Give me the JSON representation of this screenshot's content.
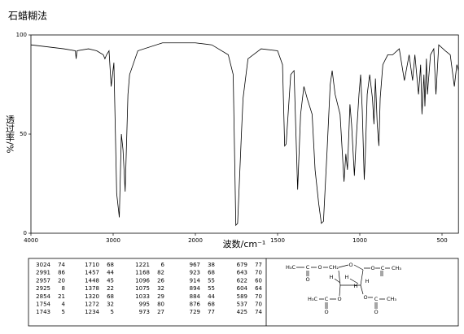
{
  "chart_data": {
    "type": "line",
    "title": "石蜡糊法",
    "xlabel": "波数/cm⁻¹",
    "ylabel": "透过率/%",
    "x": [
      4000,
      3600,
      3460,
      3450,
      3440,
      3300,
      3200,
      3120,
      3100,
      3080,
      3050,
      3024,
      2991,
      2957,
      2925,
      2900,
      2880,
      2854,
      2820,
      2800,
      2700,
      2400,
      2000,
      1900,
      1800,
      1770,
      1754,
      1743,
      1720,
      1710,
      1680,
      1600,
      1500,
      1470,
      1457,
      1448,
      1420,
      1400,
      1378,
      1360,
      1340,
      1320,
      1290,
      1272,
      1250,
      1234,
      1221,
      1200,
      1180,
      1168,
      1150,
      1120,
      1096,
      1085,
      1075,
      1060,
      1050,
      1033,
      1020,
      1005,
      995,
      985,
      973,
      967,
      955,
      940,
      923,
      914,
      905,
      894,
      884,
      876,
      860,
      830,
      800,
      760,
      729,
      700,
      679,
      665,
      643,
      630,
      622,
      610,
      604,
      595,
      589,
      570,
      550,
      537,
      520,
      480,
      450,
      425,
      410,
      400
    ],
    "values": [
      95,
      93,
      92,
      88,
      92,
      93,
      92,
      90,
      88,
      90,
      92,
      74,
      86,
      20,
      8,
      50,
      42,
      21,
      70,
      80,
      92,
      96,
      96,
      95,
      90,
      80,
      4,
      5,
      50,
      68,
      88,
      93,
      92,
      85,
      44,
      45,
      80,
      82,
      22,
      60,
      74,
      68,
      60,
      32,
      15,
      5,
      6,
      40,
      75,
      82,
      70,
      60,
      26,
      40,
      32,
      65,
      55,
      29,
      50,
      70,
      80,
      62,
      27,
      38,
      70,
      80,
      68,
      55,
      78,
      55,
      44,
      68,
      85,
      90,
      90,
      93,
      77,
      90,
      77,
      90,
      70,
      85,
      60,
      80,
      64,
      88,
      70,
      90,
      93,
      70,
      95,
      92,
      90,
      74,
      85,
      82
    ],
    "color": "#000000",
    "xlim": [
      4000,
      400
    ],
    "xticks": [
      4000,
      3000,
      2000,
      1500,
      1000,
      500
    ],
    "ylim": [
      0,
      100
    ],
    "yticks": [
      0,
      50,
      100
    ]
  },
  "peak_table": {
    "rows": [
      [
        3024,
        74,
        1710,
        68,
        1221,
        6,
        967,
        38,
        679,
        77
      ],
      [
        2991,
        86,
        1457,
        44,
        1168,
        82,
        923,
        68,
        643,
        70
      ],
      [
        2957,
        20,
        1448,
        45,
        1096,
        26,
        914,
        55,
        622,
        60
      ],
      [
        2925,
        8,
        1378,
        22,
        1075,
        32,
        894,
        55,
        604,
        64
      ],
      [
        2854,
        21,
        1320,
        68,
        1033,
        29,
        884,
        44,
        589,
        70
      ],
      [
        1754,
        4,
        1272,
        32,
        995,
        80,
        876,
        68,
        537,
        70
      ],
      [
        1743,
        5,
        1234,
        5,
        973,
        27,
        729,
        77,
        425,
        74
      ]
    ]
  },
  "structure": {
    "labels": [
      "H₃C",
      "C",
      "O",
      "CH₂",
      "O",
      "O",
      "C",
      "CH₃",
      "O",
      "H",
      "H",
      "H",
      "H",
      "H₃C",
      "C",
      "O",
      "O",
      "C",
      "CH₃",
      "O",
      "O"
    ]
  }
}
